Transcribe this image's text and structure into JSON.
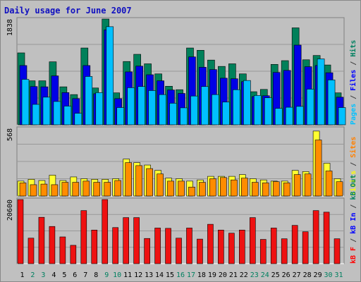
{
  "chart_data": {
    "type": "bar",
    "title": "Daily usage for June 2007",
    "categories": [
      "1",
      "2",
      "3",
      "4",
      "5",
      "6",
      "7",
      "8",
      "9",
      "10",
      "11",
      "12",
      "13",
      "14",
      "15",
      "16",
      "17",
      "18",
      "19",
      "20",
      "21",
      "22",
      "23",
      "24",
      "25",
      "26",
      "27",
      "28",
      "29",
      "30",
      "31"
    ],
    "weekend_days": [
      "2",
      "3",
      "9",
      "10",
      "16",
      "17",
      "23",
      "24",
      "30",
      "31"
    ],
    "panels": [
      {
        "ylabel_max": "1838",
        "ymax": 1838,
        "right_legend": [
          {
            "text": "Pages",
            "color": "#00c0ff"
          },
          {
            "text": " / ",
            "color": "#404040"
          },
          {
            "text": "Files",
            "color": "#0000ff"
          },
          {
            "text": " / ",
            "color": "#404040"
          },
          {
            "text": "Hits",
            "color": "#008060"
          }
        ],
        "series": [
          {
            "name": "Hits",
            "color": "#00805a",
            "values": [
              1250,
              765,
              765,
              1095,
              660,
              525,
              1335,
              640,
              1840,
              555,
              1100,
              1225,
              1060,
              885,
              670,
              610,
              1335,
              1295,
              1125,
              1015,
              1060,
              885,
              575,
              615,
              1050,
              1115,
              1685,
              1130,
              1205,
              1040,
              555
            ]
          },
          {
            "name": "Files",
            "color": "#0000e6",
            "values": [
              1030,
              665,
              660,
              850,
              560,
              455,
              1030,
              540,
              1650,
              455,
              920,
              1020,
              870,
              765,
              605,
              545,
              1180,
              1000,
              960,
              810,
              800,
              750,
              490,
              505,
              910,
              945,
              1385,
              1010,
              1030,
              905,
              480
            ]
          },
          {
            "name": "Pages",
            "color": "#00c0ff",
            "values": [
              790,
              355,
              480,
              405,
              325,
              200,
              840,
              560,
              1705,
              300,
              645,
              665,
              595,
              525,
              375,
              295,
              500,
              665,
              525,
              395,
              610,
              770,
              510,
              470,
              285,
              305,
              320,
              620,
              1145,
              780,
              300
            ]
          }
        ]
      },
      {
        "ylabel_max": "568",
        "ymax": 568,
        "right_legend": [
          {
            "text": "Visits",
            "color": "#ffff00"
          },
          {
            "text": " / ",
            "color": "#404040"
          },
          {
            "text": "Sites",
            "color": "#ff8000"
          }
        ],
        "series": [
          {
            "name": "Visits",
            "color": "#ffff30",
            "values": [
              125,
              140,
              130,
              175,
              130,
              160,
              145,
              140,
              140,
              145,
              310,
              280,
              260,
              215,
              150,
              145,
              125,
              135,
              165,
              165,
              165,
              180,
              145,
              135,
              125,
              125,
              215,
              205,
              545,
              275,
              145
            ]
          },
          {
            "name": "Sites",
            "color": "#ff8c00",
            "values": [
              110,
              95,
              100,
              95,
              115,
              115,
              125,
              115,
              115,
              130,
              280,
              255,
              230,
              185,
              125,
              125,
              75,
              115,
              145,
              155,
              135,
              150,
              115,
              110,
              120,
              110,
              180,
              185,
              470,
              210,
              120
            ]
          }
        ]
      },
      {
        "ylabel_max": "20600",
        "ymax": 20600,
        "right_legend": [
          {
            "text": "kB F",
            "color": "#ff0000"
          },
          {
            "text": " / ",
            "color": "#404040"
          },
          {
            "text": "kB In",
            "color": "#0000ff"
          },
          {
            "text": " / ",
            "color": "#404040"
          },
          {
            "text": "kB Out",
            "color": "#008060"
          }
        ],
        "series": [
          {
            "name": "kB F",
            "color": "#ee1111",
            "values": [
              20600,
              8200,
              14900,
              11950,
              8600,
              5900,
              17050,
              10800,
              20600,
              11600,
              14800,
              14800,
              8100,
              11450,
              11350,
              8200,
              11450,
              7900,
              12650,
              10800,
              9800,
              10800,
              14800,
              7800,
              11450,
              8000,
              12300,
              10250,
              17050,
              16550,
              8000
            ]
          }
        ]
      }
    ]
  }
}
